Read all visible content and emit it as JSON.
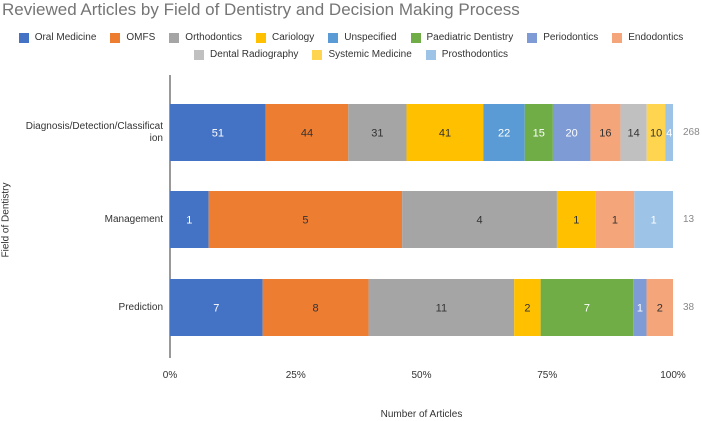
{
  "chart_data": {
    "type": "bar",
    "orientation": "horizontal",
    "stacked": "percent",
    "title": "Reviewed Articles by Field of Dentistry and Decision Making Process",
    "xlabel": "Number of Articles",
    "ylabel": "Field of Dentistry",
    "xlim": [
      0,
      100
    ],
    "x_ticks": [
      "0%",
      "25%",
      "50%",
      "75%",
      "100%"
    ],
    "legend_position": "top",
    "categories": [
      "Diagnosis/Detection/Classification",
      "Management",
      "Prediction"
    ],
    "category_labels": [
      [
        "Diagnosis/Detection/Classificat",
        "ion"
      ],
      [
        "Management"
      ],
      [
        "Prediction"
      ]
    ],
    "totals": [
      "268",
      "13",
      "38"
    ],
    "series": [
      {
        "name": "Oral Medicine",
        "color": "#4472C4",
        "values": [
          51,
          1,
          7
        ]
      },
      {
        "name": "OMFS",
        "color": "#ED7D31",
        "values": [
          44,
          5,
          8
        ]
      },
      {
        "name": "Orthodontics",
        "color": "#A5A5A5",
        "values": [
          31,
          4,
          11
        ]
      },
      {
        "name": "Cariology",
        "color": "#FFC000",
        "values": [
          41,
          1,
          2
        ]
      },
      {
        "name": "Unspecified",
        "color": "#5B9BD5",
        "values": [
          22,
          0,
          0
        ]
      },
      {
        "name": "Paediatric Dentistry",
        "color": "#70AD47",
        "values": [
          15,
          0,
          7
        ]
      },
      {
        "name": "Periodontics",
        "color": "#7E9BD6",
        "values": [
          20,
          0,
          1
        ]
      },
      {
        "name": "Endodontics",
        "color": "#F4A57A",
        "values": [
          16,
          1,
          2
        ]
      },
      {
        "name": "Dental Radiography",
        "color": "#C0C0C0",
        "values": [
          14,
          0,
          0
        ]
      },
      {
        "name": "Systemic Medicine",
        "color": "#FFD54F",
        "values": [
          10,
          0,
          0
        ]
      },
      {
        "name": "Prosthodontics",
        "color": "#9DC3E6",
        "values": [
          4,
          1,
          0
        ]
      }
    ],
    "grid": false
  }
}
